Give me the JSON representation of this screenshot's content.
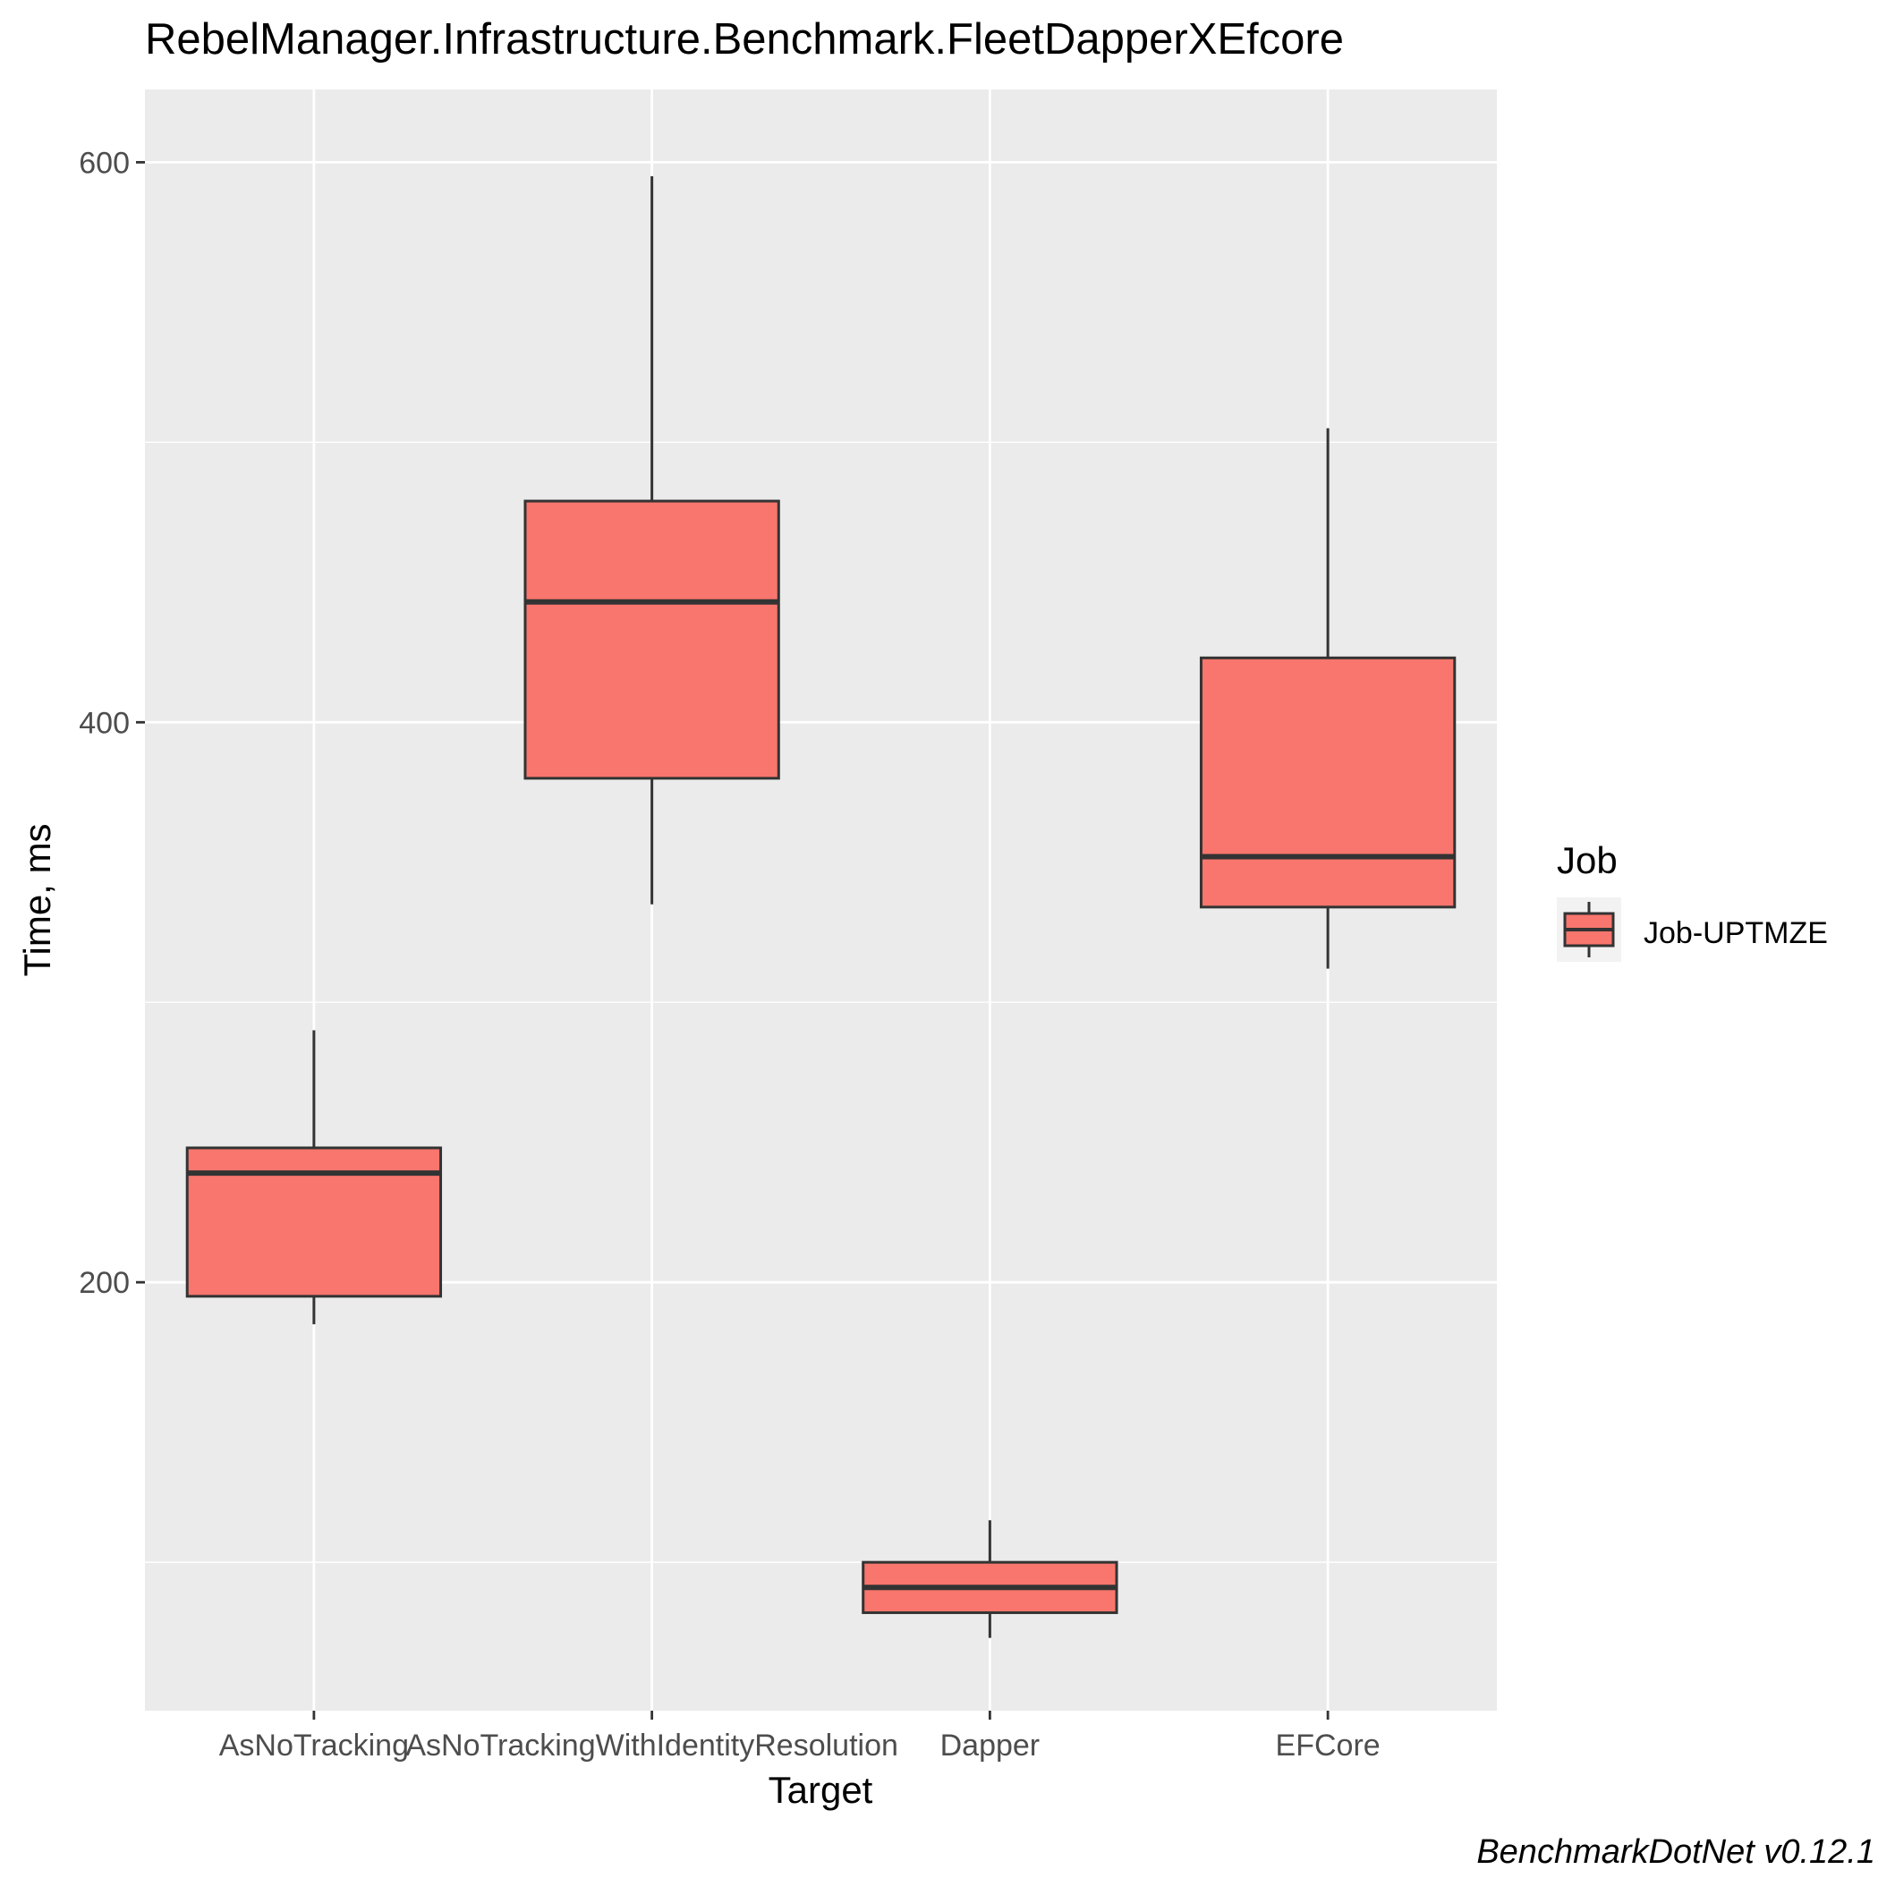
{
  "chart_data": {
    "type": "boxplot",
    "title": "RebelManager.Infrastructure.Benchmark.FleetDapperXEfcore",
    "xlabel": "Target",
    "ylabel": "Time, ms",
    "caption": "BenchmarkDotNet v0.12.1",
    "categories": [
      "AsNoTracking",
      "AsNoTrackingWithIdentityResolution",
      "Dapper",
      "EFCore"
    ],
    "y_ticks": [
      200,
      400,
      600
    ],
    "ylim": [
      47,
      626
    ],
    "grid": true,
    "legend": {
      "title": "Job",
      "position": "right",
      "entries": [
        "Job-UPTMZE"
      ]
    },
    "series": [
      {
        "name": "Job-UPTMZE",
        "color": "#F8766D",
        "boxes": [
          {
            "category": "AsNoTracking",
            "whisker_low": 185,
            "q1": 195,
            "median": 239,
            "q3": 248,
            "whisker_high": 290
          },
          {
            "category": "AsNoTrackingWithIdentityResolution",
            "whisker_low": 335,
            "q1": 380,
            "median": 443,
            "q3": 479,
            "whisker_high": 595
          },
          {
            "category": "Dapper",
            "whisker_low": 73,
            "q1": 82,
            "median": 91,
            "q3": 100,
            "whisker_high": 115
          },
          {
            "category": "EFCore",
            "whisker_low": 312,
            "q1": 334,
            "median": 352,
            "q3": 423,
            "whisker_high": 505
          }
        ]
      }
    ]
  }
}
